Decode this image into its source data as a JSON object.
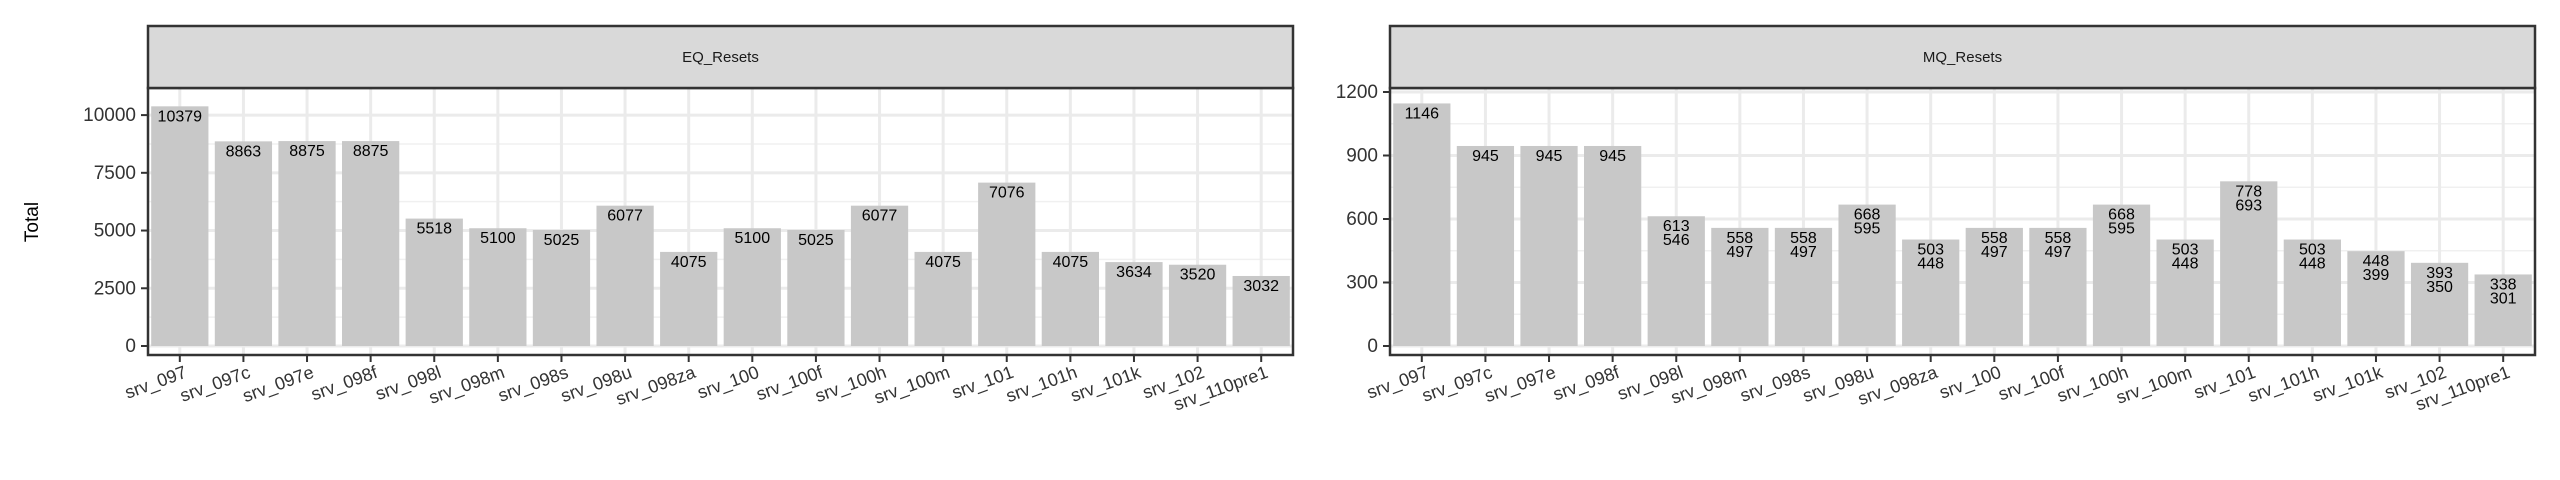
{
  "chart_data": {
    "type": "bar",
    "ylabel": "Total",
    "xlabel": "",
    "grid": true,
    "bar_color": "#c8c8c8",
    "strip_color": "#d9d9d9",
    "categories": [
      "srv_097",
      "srv_097c",
      "srv_097e",
      "srv_098f",
      "srv_098l",
      "srv_098m",
      "srv_098s",
      "srv_098u",
      "srv_098za",
      "srv_100",
      "srv_100f",
      "srv_100h",
      "srv_100m",
      "srv_101",
      "srv_101h",
      "srv_101k",
      "srv_102",
      "srv_110pre1"
    ],
    "panels": [
      {
        "title": "EQ_Resets",
        "ylim": [
          0,
          11000
        ],
        "yticks": [
          0,
          2500,
          5000,
          7500,
          10000
        ],
        "values": [
          10379,
          8863,
          8875,
          8875,
          5518,
          5100,
          5025,
          6077,
          4075,
          5100,
          5025,
          6077,
          4075,
          7076,
          4075,
          3634,
          3520,
          3032
        ],
        "labels_upper": [
          "10379",
          "8863",
          "8875",
          "8875",
          "5518",
          "5100",
          "5025",
          "6077",
          "4075",
          "5100",
          "5025",
          "6077",
          "4075",
          "7076",
          "4075",
          "3634",
          "3520",
          "3032"
        ],
        "labels_lower": []
      },
      {
        "title": "MQ_Resets",
        "ylim": [
          0,
          1200
        ],
        "yticks": [
          0,
          300,
          600,
          900,
          1200
        ],
        "values": [
          1146,
          945,
          945,
          945,
          613,
          558,
          558,
          668,
          503,
          558,
          558,
          668,
          503,
          778,
          503,
          448,
          393,
          338
        ],
        "labels_upper": [
          "1146",
          "945",
          "945",
          "945",
          "613",
          "558",
          "558",
          "668",
          "503",
          "558",
          "558",
          "668",
          "503",
          "778",
          "503",
          "448",
          "393",
          "338"
        ],
        "labels_lower": [
          "",
          "",
          "",
          "",
          "546",
          "497",
          "497",
          "595",
          "448",
          "497",
          "497",
          "595",
          "448",
          "693",
          "448",
          "399",
          "350",
          "301"
        ]
      }
    ]
  }
}
